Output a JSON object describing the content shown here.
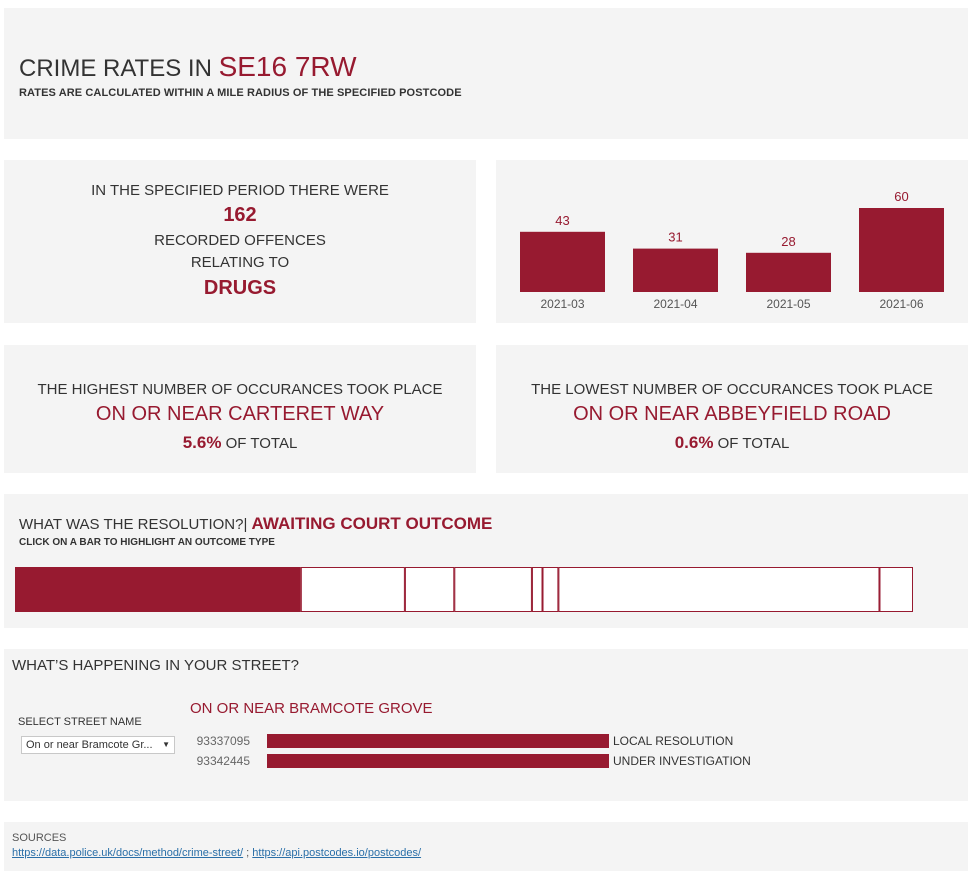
{
  "header": {
    "title_prefix": "CRIME RATES IN",
    "postcode": "SE16 7RW",
    "subtitle": "RATES ARE CALCULATED WITHIN A MILE RADIUS OF THE SPECIFIED POSTCODE"
  },
  "summary": {
    "line1": "IN THE SPECIFIED PERIOD THERE WERE",
    "count": "162",
    "line2": "RECORDED OFFENCES",
    "line3": "RELATING TO",
    "category": "DRUGS"
  },
  "highest": {
    "line1": "THE HIGHEST NUMBER OF OCCURANCES TOOK PLACE",
    "street": "ON OR NEAR CARTERET WAY",
    "pct": "5.6%",
    "pct_suffix": "OF TOTAL"
  },
  "lowest": {
    "line1": "THE LOWEST NUMBER OF OCCURANCES TOOK PLACE",
    "street": "ON OR NEAR ABBEYFIELD ROAD",
    "pct": "0.6%",
    "pct_suffix": "OF TOTAL"
  },
  "resolution": {
    "question": "WHAT WAS THE RESOLUTION?|",
    "selected": "AWAITING COURT OUTCOME",
    "hint": "CLICK ON A BAR TO HIGHLIGHT AN OUTCOME TYPE"
  },
  "street": {
    "question": "WHAT’S HAPPENING IN YOUR STREET?",
    "select_label": "SELECT STREET NAME",
    "select_value": "On or near Bramcote Gr...",
    "street_name": "ON OR NEAR BRAMCOTE GROVE"
  },
  "sources": {
    "label": "SOURCES",
    "link1": "https://data.police.uk/docs/method/crime-street/",
    "separator": " ; ",
    "link2": "https://api.postcodes.io/postcodes/"
  },
  "colors": {
    "accent": "#971a30",
    "panel": "#f4f4f4"
  },
  "chart_data": [
    {
      "type": "bar",
      "categories": [
        "2021-03",
        "2021-04",
        "2021-05",
        "2021-06"
      ],
      "values": [
        43,
        31,
        28,
        60
      ],
      "title": "",
      "xlabel": "",
      "ylabel": "",
      "ylim": [
        0,
        60
      ]
    },
    {
      "type": "bar",
      "orientation": "stacked-horizontal",
      "values": [
        162,
        59,
        28,
        44,
        6,
        9,
        182,
        19
      ],
      "highlighted_index": 0,
      "title": "",
      "xlabel": "",
      "ylabel": ""
    },
    {
      "type": "bar",
      "orientation": "horizontal",
      "categories": [
        "93337095",
        "93342445"
      ],
      "values": [
        1,
        1
      ],
      "labels": [
        "LOCAL RESOLUTION",
        "UNDER INVESTIGATION"
      ],
      "title": "",
      "xlabel": "",
      "ylabel": ""
    }
  ]
}
